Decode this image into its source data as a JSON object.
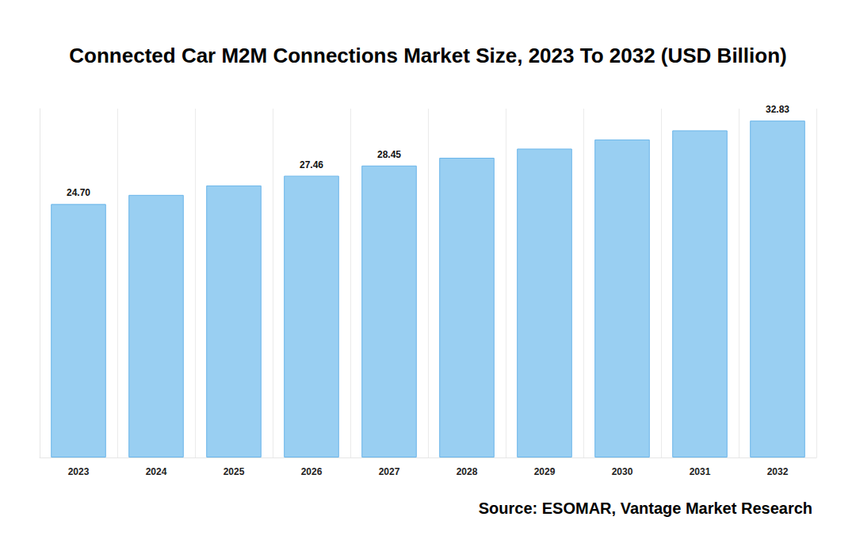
{
  "chart_data": {
    "type": "bar",
    "title": "Connected Car M2M Connections Market Size, 2023 To 2032 (USD Billion)",
    "source": "Source: ESOMAR, Vantage Market Research",
    "categories": [
      "2023",
      "2024",
      "2025",
      "2026",
      "2027",
      "2028",
      "2029",
      "2030",
      "2031",
      "2032"
    ],
    "values": [
      24.7,
      25.59,
      26.51,
      27.46,
      28.45,
      29.21,
      30.1,
      30.99,
      31.88,
      32.83
    ],
    "value_labels": [
      "24.70",
      null,
      null,
      "27.46",
      "28.45",
      null,
      null,
      null,
      null,
      "32.83"
    ],
    "data_labels": true,
    "color": "#99cff2",
    "ylim": [
      0,
      34
    ],
    "tick_labels": "x",
    "grid": true
  }
}
